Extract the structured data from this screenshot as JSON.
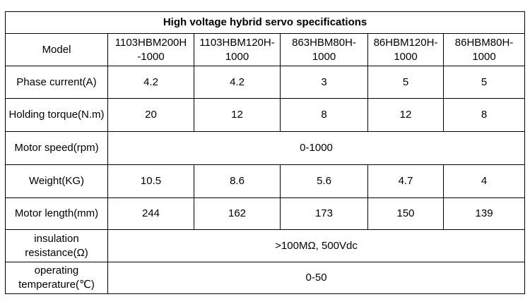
{
  "table": {
    "title": "High voltage hybrid servo specifications",
    "header": {
      "label": "Model",
      "models": [
        "1103HBM200H\n-1000",
        "1103HBM120H-\n1000",
        "863HBM80H-\n1000",
        "86HBM120H-\n1000",
        "86HBM80H-\n1000"
      ]
    },
    "rows": [
      {
        "label": "Phase current(A)",
        "values": [
          "4.2",
          "4.2",
          "3",
          "5",
          "5"
        ]
      },
      {
        "label": "Holding torque(N.m)",
        "values": [
          "20",
          "12",
          "8",
          "12",
          "8"
        ]
      },
      {
        "label": "Motor speed(rpm)",
        "merged": "0-1000"
      },
      {
        "label": "Weight(KG)",
        "values": [
          "10.5",
          "8.6",
          "5.6",
          "4.7",
          "4"
        ]
      },
      {
        "label": "Motor length(mm)",
        "values": [
          "244",
          "162",
          "173",
          "150",
          "139"
        ]
      },
      {
        "label": "insulation resistance(Ω)",
        "merged": ">100MΩ, 500Vdc"
      },
      {
        "label": "operating temperature(℃)",
        "merged": "0-50"
      }
    ]
  }
}
